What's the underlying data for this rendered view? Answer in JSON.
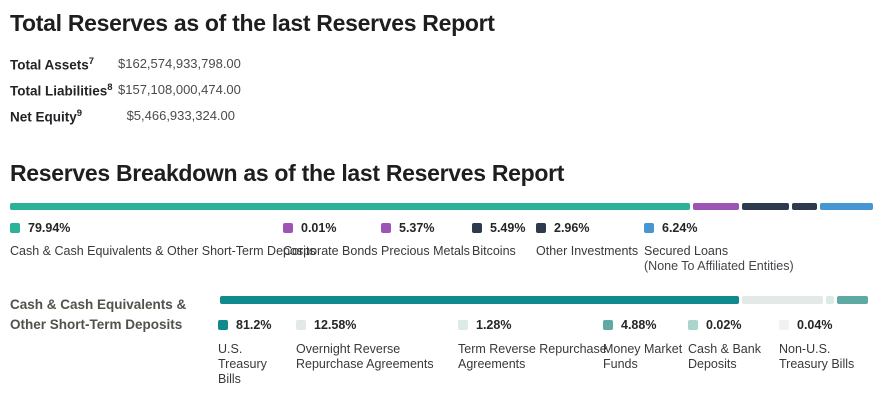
{
  "section1": {
    "title": "Total Reserves as of the last Reserves Report",
    "rows": [
      {
        "label": "Total Assets",
        "sup": "7",
        "value": "$162,574,933,798.00"
      },
      {
        "label": "Total Liabilities",
        "sup": "8",
        "value": "$157,108,000,474.00"
      },
      {
        "label": "Net Equity",
        "sup": "9",
        "value": "$5,466,933,324.00"
      }
    ]
  },
  "section2": {
    "title": "Reserves Breakdown as of the last Reserves Report"
  },
  "sub_section": {
    "label_line1": "Cash & Cash Equivalents &",
    "label_line2": "Other Short-Term Deposits"
  },
  "chart_data": [
    {
      "type": "bar",
      "variant": "horizontal-stacked",
      "title": "Reserves Breakdown as of the last Reserves Report",
      "unit": "percent",
      "total": 100,
      "series": [
        {
          "name": "Cash & Cash Equivalents & Other Short-Term Deposits",
          "pct": "79.94%",
          "value": 79.94,
          "color": "#2bb298"
        },
        {
          "name": "Corporate Bonds",
          "pct": "0.01%",
          "value": 0.01,
          "color": "#9c55b4"
        },
        {
          "name": "Precious Metals",
          "pct": "5.37%",
          "value": 5.37,
          "color": "#9c55b4"
        },
        {
          "name": "Bitcoins",
          "pct": "5.49%",
          "value": 5.49,
          "color": "#2e3b4e"
        },
        {
          "name": "Other Investments",
          "pct": "2.96%",
          "value": 2.96,
          "color": "#2e3b4e"
        },
        {
          "name": "Secured Loans",
          "note": "(None To Affiliated Entities)",
          "pct": "6.24%",
          "value": 6.24,
          "color": "#4596d2"
        }
      ]
    },
    {
      "type": "bar",
      "variant": "horizontal-stacked",
      "title": "Cash & Cash Equivalents & Other Short-Term Deposits",
      "unit": "percent",
      "total": 100,
      "series": [
        {
          "name": "U.S. Treasury Bills",
          "pct": "81.2%",
          "value": 81.2,
          "color": "#108a8c"
        },
        {
          "name": "Overnight Reverse Repurchase Agreements",
          "pct": "12.58%",
          "value": 12.58,
          "color": "#e2e9e6"
        },
        {
          "name": "Term Reverse Repurchase Agreements",
          "pct": "1.28%",
          "value": 1.28,
          "color": "#dcebe5"
        },
        {
          "name": "Money Market Funds",
          "pct": "4.88%",
          "value": 4.88,
          "color": "#5fa9a3"
        },
        {
          "name": "Cash & Bank Deposits",
          "pct": "0.02%",
          "value": 0.02,
          "color": "#a9d5cc"
        },
        {
          "name": "Non-U.S. Treasury Bills",
          "pct": "0.04%",
          "value": 0.04,
          "color": "#eff3f0"
        }
      ]
    }
  ]
}
